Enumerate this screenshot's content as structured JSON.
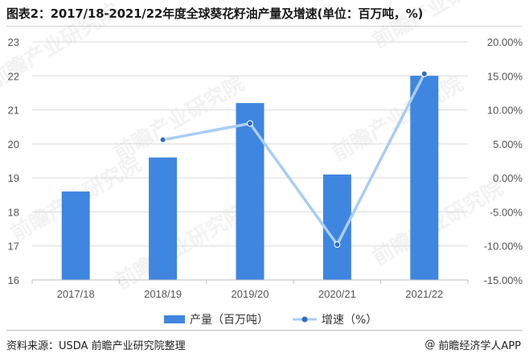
{
  "title": "图表2：2017/18-2021/22年度全球葵花籽油产量及增速(单位：百万吨，%)",
  "footer": {
    "source": "资料来源：USDA 前瞻产业研究院整理",
    "brand": "前瞻经济学人APP",
    "brand_icon": "at-sign-icon"
  },
  "watermark": {
    "line1": "前瞻产业研究院"
  },
  "colors": {
    "bar": "#3f86e0",
    "line": "#a9cdf2",
    "marker": "#2f6fbf",
    "grid": "#d9d9d9",
    "axis_text": "#555555"
  },
  "chart_data": {
    "type": "bar",
    "categories": [
      "2017/18",
      "2018/19",
      "2019/20",
      "2020/21",
      "2021/22"
    ],
    "series": [
      {
        "name": "产量（百万吨）",
        "type": "bar",
        "axis": "left",
        "values": [
          18.6,
          19.6,
          21.2,
          19.1,
          22.0
        ]
      },
      {
        "name": "增速（%）",
        "type": "line",
        "axis": "right",
        "values": [
          null,
          5.6,
          8.0,
          -9.8,
          15.3
        ]
      }
    ],
    "left_axis": {
      "min": 16,
      "max": 23,
      "ticks": [
        "16",
        "17",
        "18",
        "19",
        "20",
        "21",
        "22",
        "23"
      ]
    },
    "right_axis": {
      "min": -15,
      "max": 20,
      "ticks": [
        "-15.00%",
        "-10.00%",
        "-5.00%",
        "0.00%",
        "5.00%",
        "10.00%",
        "15.00%",
        "20.00%"
      ]
    },
    "grid": true,
    "legend": "bottom-center"
  }
}
